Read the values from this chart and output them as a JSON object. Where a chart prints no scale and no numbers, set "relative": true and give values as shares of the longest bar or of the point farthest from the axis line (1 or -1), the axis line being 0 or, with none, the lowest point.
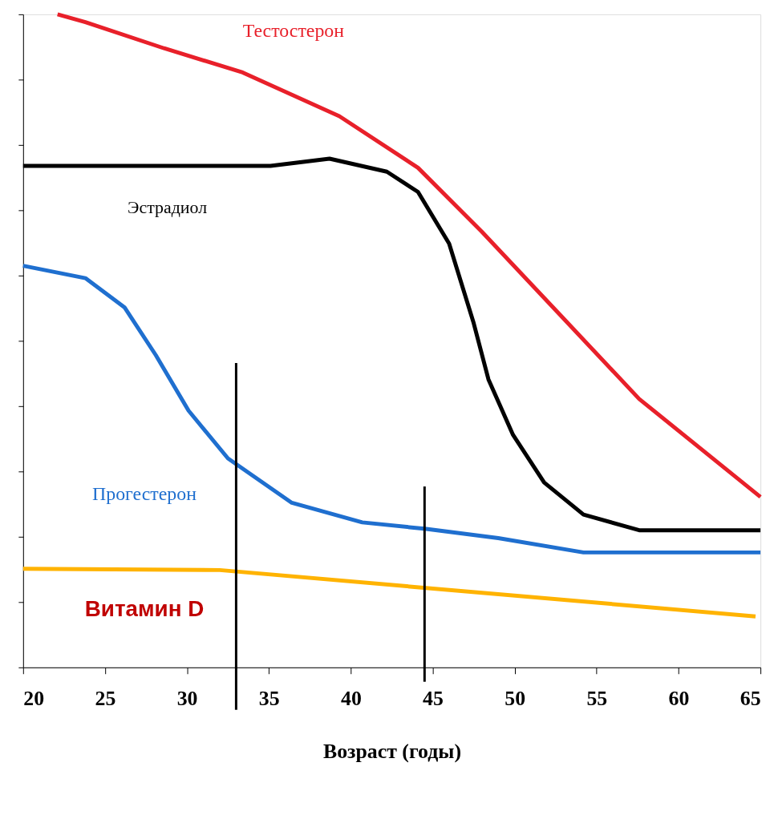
{
  "chart_data": {
    "type": "line",
    "relative": true,
    "xlabel": "Возраст (годы)",
    "xlim": [
      20,
      65
    ],
    "xticks": [
      20,
      25,
      30,
      35,
      40,
      45,
      50,
      55,
      60,
      65
    ],
    "grid": false,
    "legend": false,
    "marker": "none",
    "line_style": "solid",
    "series": [
      {
        "name": "Тестостерон",
        "color": "#e8202a",
        "x": [
          22.1,
          23.8,
          28.6,
          33.4,
          39.3,
          44.1,
          48,
          52.8,
          57.6,
          65
        ],
        "values": [
          1.0,
          0.988,
          0.948,
          0.911,
          0.844,
          0.765,
          0.667,
          0.539,
          0.411,
          0.261
        ]
      },
      {
        "name": "Эстрадиол",
        "color": "#000000",
        "x": [
          20,
          35.1,
          38.7,
          42.2,
          44.1,
          46,
          47.5,
          48.4,
          49.9,
          51.8,
          54.2,
          57.6,
          65
        ],
        "values": [
          0.768,
          0.768,
          0.779,
          0.759,
          0.728,
          0.649,
          0.527,
          0.441,
          0.356,
          0.283,
          0.234,
          0.21,
          0.21
        ]
      },
      {
        "name": "Прогестерон",
        "color": "#1f6fcf",
        "x": [
          20,
          23.8,
          26.2,
          28.1,
          30.1,
          32.5,
          36.4,
          40.7,
          44.6,
          49,
          54.2,
          65
        ],
        "values": [
          0.615,
          0.596,
          0.551,
          0.478,
          0.393,
          0.32,
          0.252,
          0.222,
          0.212,
          0.198,
          0.176,
          0.176
        ]
      },
      {
        "name": "Витамин D",
        "color": "#ffb300",
        "x": [
          20,
          32,
          64.7
        ],
        "values": [
          0.151,
          0.149,
          0.078
        ]
      }
    ],
    "ref_lines": [
      {
        "axis": "x",
        "value": 33,
        "color": "#000000"
      },
      {
        "axis": "x",
        "value": 44.5,
        "color": "#000000"
      }
    ]
  }
}
